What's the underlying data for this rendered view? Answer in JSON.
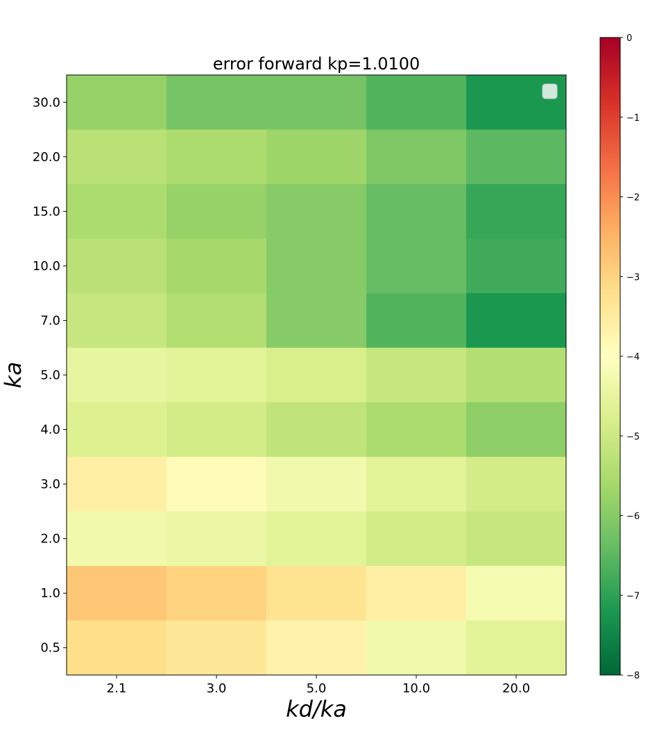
{
  "chart_data": {
    "type": "heatmap",
    "title": "error forward   kp=1.0100",
    "xlabel": "kd/ka",
    "ylabel": "ka",
    "x_categories": [
      "2.1",
      "3.0",
      "5.0",
      "10.0",
      "20.0"
    ],
    "y_categories": [
      "30.0",
      "20.0",
      "15.0",
      "10.0",
      "7.0",
      "5.0",
      "4.0",
      "3.0",
      "2.0",
      "1.0",
      "0.5"
    ],
    "values": [
      [
        -5.8,
        -6.2,
        -6.2,
        -6.6,
        -7.2
      ],
      [
        -5.3,
        -5.5,
        -5.7,
        -6.1,
        -6.5
      ],
      [
        -5.5,
        -5.8,
        -6.0,
        -6.4,
        -6.9
      ],
      [
        -5.3,
        -5.6,
        -6.0,
        -6.4,
        -6.8
      ],
      [
        -5.1,
        -5.4,
        -6.0,
        -6.6,
        -7.2
      ],
      [
        -4.5,
        -4.6,
        -4.8,
        -5.1,
        -5.4
      ],
      [
        -4.7,
        -4.9,
        -5.2,
        -5.5,
        -5.9
      ],
      [
        -3.6,
        -3.9,
        -4.3,
        -4.6,
        -4.9
      ],
      [
        -4.3,
        -4.4,
        -4.6,
        -4.9,
        -5.1
      ],
      [
        -2.8,
        -3.0,
        -3.3,
        -3.6,
        -4.2
      ],
      [
        -3.2,
        -3.4,
        -3.7,
        -4.3,
        -4.6
      ]
    ],
    "colormap": "RdYlGn_r",
    "vmin": -8,
    "vmax": 0,
    "colorbar_ticks": [
      "0",
      "−1",
      "−2",
      "−3",
      "−4",
      "−5",
      "−6",
      "−7",
      "−8"
    ],
    "legend_placement": "upper right",
    "grid": false
  }
}
